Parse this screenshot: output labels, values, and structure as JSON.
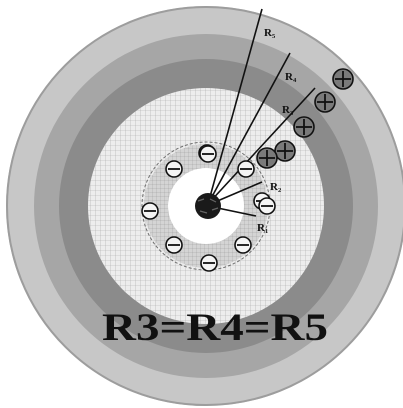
{
  "labels": {
    "r5": "R₅",
    "r4": "R₄",
    "r3": "R₃",
    "r2": "R₂",
    "r1": "R₁",
    "equation": "R3=R4=R5"
  },
  "markers": {
    "negative_symbol": "⊖",
    "positive_symbol": "⊕",
    "negative_count": 10,
    "positive_count": 5
  },
  "colors": {
    "outer_ring": "#c7c7c7",
    "ring_2": "#a6a6a6",
    "ring_3": "#8b8b8b",
    "grid_band": "#ededed",
    "grid_line": "#a9a9a9",
    "white_core": "#ffffff",
    "nucleus": "#1a1a1a",
    "ink": "#111111"
  }
}
